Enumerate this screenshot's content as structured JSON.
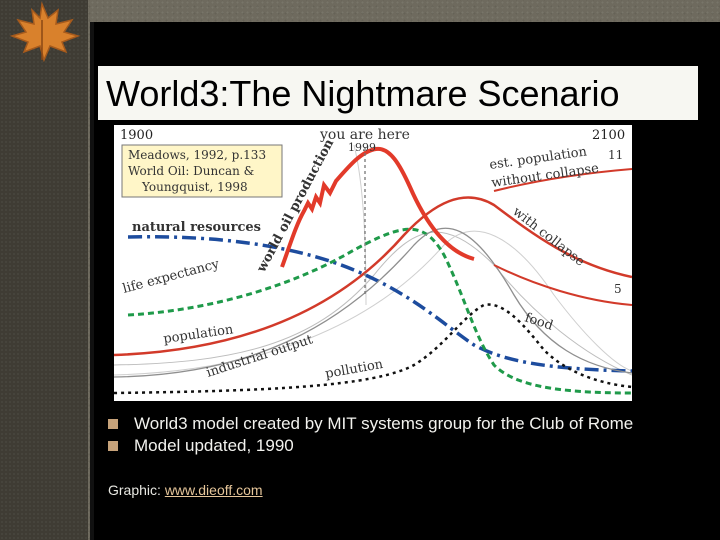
{
  "slide": {
    "title": "World3:The Nightmare Scenario",
    "bullets": [
      "World3 model created by MIT systems group for the Club of Rome",
      "Model updated, 1990"
    ],
    "credit_label": "Graphic:",
    "credit_link": "www.dieoff.com"
  },
  "chart": {
    "year_start": "1900",
    "year_end": "2100",
    "marker_label": "you are here",
    "marker_year": "1999",
    "source_lines": [
      "Meadows, 1992, p.133",
      "World Oil: Duncan &",
      "Youngquist, 1998"
    ],
    "curve_labels": {
      "natural_resources": "natural resources",
      "life_expectancy": "life expectancy",
      "population": "population",
      "industrial_output": "industrial output",
      "pollution": "pollution",
      "food": "food",
      "world_oil": "world oil production",
      "est_population": "est. population",
      "without_collapse": "without collapse",
      "with_collapse": "with collapse",
      "right_11": "11",
      "right_5": "5"
    }
  },
  "colors": {
    "oil": "#e23a2a",
    "population": "#d23a2a",
    "resources": "#1d4c9e",
    "life_expectancy": "#1f9a4a",
    "pollution": "#111111",
    "accent_bullet": "#c7a37a"
  }
}
